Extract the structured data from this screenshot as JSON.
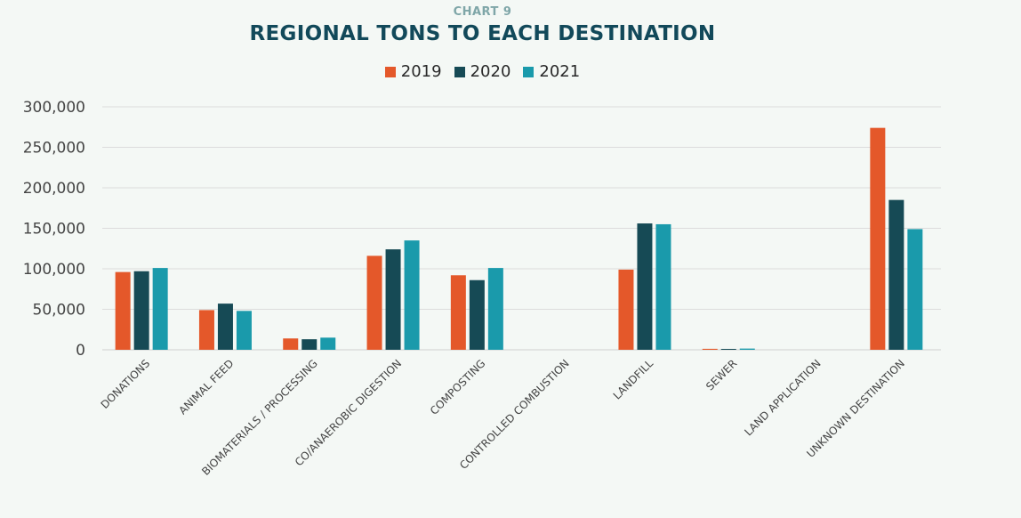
{
  "chart_data": {
    "type": "bar",
    "kicker": "CHART 9",
    "title": "REGIONAL TONS TO EACH DESTINATION",
    "xlabel": "",
    "ylabel": "",
    "ylim": [
      0,
      300000
    ],
    "yticks": [
      0,
      50000,
      100000,
      150000,
      200000,
      250000,
      300000
    ],
    "ytick_labels": [
      "0",
      "50,000",
      "100,000",
      "150,000",
      "200,000",
      "250,000",
      "300,000"
    ],
    "grid": true,
    "legend_position": "top-center",
    "categories": [
      "DONATIONS",
      "ANIMAL FEED",
      "BIOMATERIALS / PROCESSING",
      "CO/ANAEROBIC DIGESTION",
      "COMPOSTING",
      "CONTROLLED COMBUSTION",
      "LANDFILL",
      "SEWER",
      "LAND APPLICATION",
      "UNKNOWN DESTINATION"
    ],
    "series": [
      {
        "name": "2019",
        "color": "#e4582a",
        "values": [
          96000,
          49000,
          14000,
          116000,
          92000,
          0,
          99000,
          1200,
          0,
          274000
        ]
      },
      {
        "name": "2020",
        "color": "#164a55",
        "values": [
          97000,
          57000,
          13000,
          124000,
          86000,
          0,
          156000,
          600,
          0,
          185000
        ]
      },
      {
        "name": "2021",
        "color": "#1a9aab",
        "values": [
          101000,
          48000,
          15000,
          135000,
          101000,
          0,
          155000,
          1500,
          0,
          149000
        ]
      }
    ]
  }
}
